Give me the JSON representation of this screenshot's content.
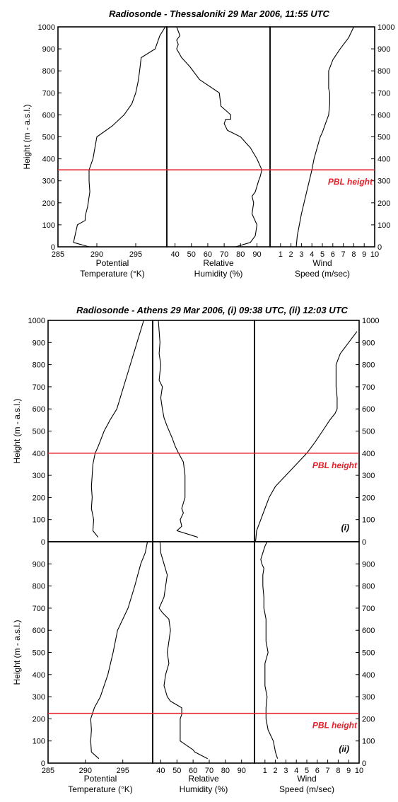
{
  "chart_data": [
    {
      "type": "line",
      "title": "Radiosonde - Thessaloniki 29 Mar 2006, 11:55 UTC",
      "ylabel": "Height (m - a.s.l.)",
      "ylim": [
        0,
        1000
      ],
      "yticks": [
        0,
        100,
        200,
        300,
        400,
        500,
        600,
        700,
        800,
        900,
        1000
      ],
      "pbl_height": 350,
      "pbl_label": "PBL height",
      "marker": "",
      "panels": [
        {
          "xlabel": [
            "Potential",
            "Temperature (°K)"
          ],
          "xlim": [
            285,
            299
          ],
          "xticks": [
            285,
            290,
            295
          ],
          "series": {
            "x": [
              289,
              287,
              287.5,
              288.5,
              288.5,
              288.8,
              289.1,
              289.0,
              289.0,
              289.5,
              290.0,
              292.0,
              293.5,
              294.5,
              295.0,
              295.3,
              295.5,
              295.7,
              297.5,
              298.1,
              298.8
            ],
            "y": [
              0,
              20,
              100,
              120,
              140,
              180,
              250,
              300,
              350,
              400,
              500,
              550,
              600,
              650,
              700,
              750,
              800,
              860,
              900,
              960,
              1000
            ]
          }
        },
        {
          "xlabel": [
            "Relative",
            "Humidity (%)"
          ],
          "xlim": [
            35,
            98
          ],
          "xticks": [
            40,
            50,
            60,
            70,
            80,
            90
          ],
          "series": {
            "x": [
              77,
              86,
              89,
              90,
              87,
              88,
              87,
              89,
              91,
              92,
              93,
              90,
              86,
              80,
              72,
              70,
              71,
              74,
              74,
              68,
              67,
              55,
              49,
              44,
              41,
              42,
              41,
              43,
              41
            ],
            "y": [
              0,
              20,
              50,
              100,
              150,
              200,
              230,
              250,
              300,
              320,
              350,
              400,
              450,
              500,
              530,
              560,
              580,
              580,
              600,
              640,
              700,
              760,
              820,
              860,
              900,
              920,
              940,
              960,
              1000
            ]
          }
        },
        {
          "xlabel": [
            "Wind",
            "Speed (m/sec)"
          ],
          "xlim": [
            0,
            10
          ],
          "xticks": [
            1,
            2,
            3,
            4,
            5,
            6,
            7,
            8,
            9,
            10
          ],
          "series": {
            "x": [
              2.5,
              2.6,
              3.0,
              3.5,
              4.0,
              4.2,
              4.5,
              4.8,
              5.0,
              5.3,
              5.6,
              5.7,
              5.7,
              5.6,
              5.6,
              5.6,
              6.0,
              6.7,
              7.5,
              8.0
            ],
            "y": [
              0,
              50,
              150,
              250,
              350,
              400,
              450,
              500,
              520,
              560,
              600,
              650,
              700,
              720,
              750,
              800,
              850,
              900,
              950,
              1000
            ]
          }
        }
      ]
    },
    {
      "type": "line",
      "title": "Radiosonde - Athens 29 Mar 2006, (i) 09:38 UTC, (ii) 12:03 UTC",
      "ylabel": "Height (m - a.s.l.)",
      "ylim": [
        0,
        1000
      ],
      "yticks": [
        0,
        100,
        200,
        300,
        400,
        500,
        600,
        700,
        800,
        900,
        1000
      ],
      "pbl_height": 400,
      "pbl_label": "PBL height",
      "marker": "(i)",
      "panels": [
        {
          "xlabel": [
            "",
            ""
          ],
          "xlim": [
            285,
            299
          ],
          "xticks": [],
          "series": {
            "x": [
              291.7,
              291.0,
              291.1,
              290.8,
              290.9,
              290.8,
              290.9,
              291.0,
              291.3,
              291.7,
              292.5,
              293.3,
              294.2,
              295.1,
              296.0,
              296.9,
              297.8
            ],
            "y": [
              20,
              50,
              100,
              150,
              200,
              250,
              300,
              350,
              400,
              430,
              500,
              550,
              600,
              700,
              800,
              900,
              1000
            ]
          }
        },
        {
          "xlabel": [
            "",
            ""
          ],
          "xlim": [
            35,
            98
          ],
          "xticks": [],
          "series": {
            "x": [
              63,
              50,
              53,
              52,
              54,
              53,
              55,
              55,
              55,
              54,
              51,
              49,
              47,
              44,
              42,
              41,
              40,
              41,
              39,
              40,
              39,
              39.5,
              38.5
            ],
            "y": [
              20,
              50,
              70,
              100,
              130,
              150,
              200,
              250,
              300,
              360,
              400,
              430,
              470,
              520,
              560,
              600,
              650,
              700,
              730,
              800,
              850,
              900,
              1000
            ]
          }
        },
        {
          "xlabel": [
            "",
            ""
          ],
          "xlim": [
            0,
            10
          ],
          "xticks": [],
          "series": {
            "x": [
              0.1,
              0.2,
              0.6,
              1.0,
              1.4,
              2.0,
              3.0,
              4.0,
              5.0,
              5.8,
              6.5,
              7.2,
              7.7,
              7.9,
              7.9,
              7.8,
              7.8,
              8.2,
              9.0,
              9.8
            ],
            "y": [
              0,
              50,
              100,
              150,
              200,
              250,
              300,
              350,
              400,
              450,
              500,
              550,
              580,
              600,
              650,
              700,
              800,
              850,
              900,
              950
            ]
          }
        }
      ]
    },
    {
      "type": "line",
      "title": "",
      "ylabel": "Height (m - a.s.l.)",
      "ylim": [
        0,
        1000
      ],
      "yticks": [
        0,
        100,
        200,
        300,
        400,
        500,
        600,
        700,
        800,
        900
      ],
      "pbl_height": 225,
      "pbl_label": "PBL height",
      "marker": "(ii)",
      "panels": [
        {
          "xlabel": [
            "Potential",
            "Temperature (°K)"
          ],
          "xlim": [
            285,
            299
          ],
          "xticks": [
            285,
            290,
            295
          ],
          "series": {
            "x": [
              291.8,
              290.8,
              290.7,
              290.8,
              290.7,
              290.9,
              291.2,
              292.0,
              293.0,
              293.7,
              294.3,
              295.0,
              295.7,
              296.6,
              297.4,
              298.0,
              298.3
            ],
            "y": [
              20,
              50,
              100,
              150,
              200,
              220,
              250,
              300,
              400,
              500,
              600,
              650,
              700,
              800,
              900,
              950,
              1000
            ]
          }
        },
        {
          "xlabel": [
            "Relative",
            "Humidity (%)"
          ],
          "xlim": [
            35,
            98
          ],
          "xticks": [
            40,
            50,
            60,
            70,
            80,
            90
          ],
          "series": {
            "x": [
              69,
              61,
              60,
              52,
              52,
              53,
              53,
              46,
              44,
              42,
              43,
              45,
              44,
              45,
              46,
              45,
              41,
              39,
              42,
              43,
              44,
              42,
              40,
              39.5,
              40
            ],
            "y": [
              20,
              50,
              60,
              100,
              200,
              220,
              250,
              280,
              300,
              350,
              400,
              450,
              500,
              550,
              600,
              650,
              680,
              700,
              750,
              800,
              850,
              900,
              950,
              1000,
              1000
            ]
          }
        },
        {
          "xlabel": [
            "Wind",
            "Speed (m/sec)"
          ],
          "xlim": [
            0,
            10
          ],
          "xticks": [
            1,
            2,
            3,
            4,
            5,
            6,
            7,
            8,
            9,
            10
          ],
          "series": {
            "x": [
              2.2,
              2.0,
              1.8,
              1.3,
              1.1,
              1.1,
              1.2,
              1.0,
              1.0,
              1.3,
              1.1,
              1.1,
              0.9,
              0.9,
              0.8,
              0.8,
              0.8,
              0.9,
              0.7,
              0.6,
              0.8,
              1.0,
              1.2
            ],
            "y": [
              20,
              50,
              100,
              150,
              200,
              250,
              300,
              350,
              450,
              500,
              550,
              650,
              700,
              750,
              800,
              820,
              850,
              880,
              900,
              920,
              950,
              980,
              1000
            ]
          }
        }
      ]
    }
  ]
}
